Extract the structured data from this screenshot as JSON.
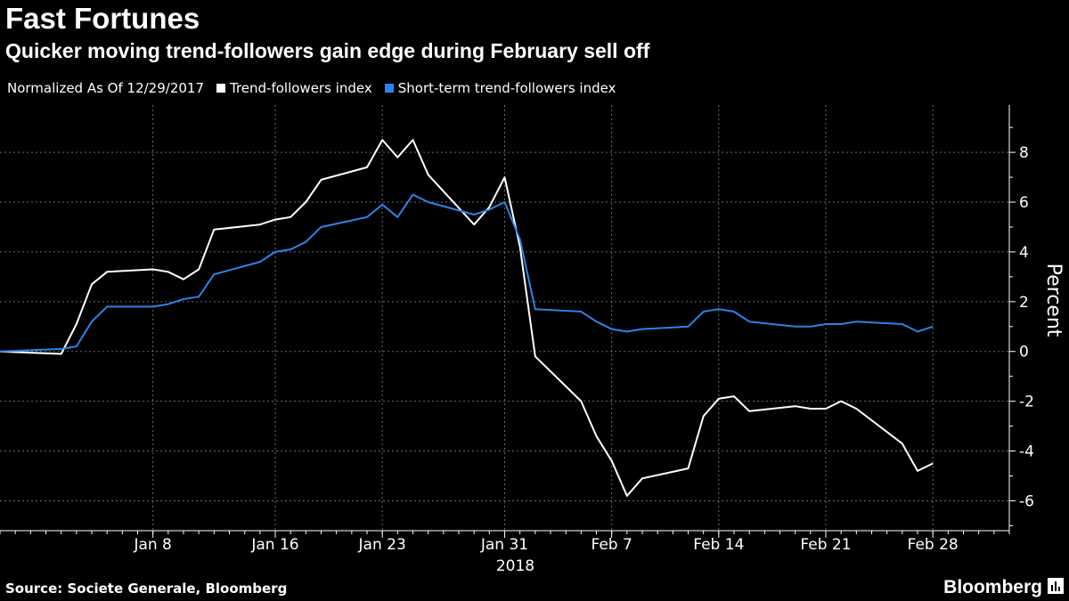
{
  "header": {
    "title": "Fast Fortunes",
    "subtitle": "Quicker moving trend-followers gain edge during February sell off"
  },
  "legend": {
    "note": "Normalized As Of 12/29/2017",
    "items": [
      {
        "label": "Trend-followers index",
        "color": "#ffffff"
      },
      {
        "label": "Short-term trend-followers index",
        "color": "#2d83e6"
      }
    ]
  },
  "footer": {
    "source": "Source: Societe Generale, Bloomberg",
    "brand": "Bloomberg",
    "brand_icon": "bloomberg-chart-icon"
  },
  "chart_data": {
    "type": "line",
    "ylabel": "Percent",
    "ylim": [
      -7.2,
      9.9
    ],
    "yticks": [
      -6,
      -4,
      -2,
      0,
      2,
      4,
      6,
      8
    ],
    "xlim": [
      "2017-12-29",
      "2018-03-05"
    ],
    "xticks": [
      {
        "date": "2018-01-08",
        "label": "Jan 8"
      },
      {
        "date": "2018-01-16",
        "label": "Jan 16"
      },
      {
        "date": "2018-01-23",
        "label": "Jan 23"
      },
      {
        "date": "2018-01-31",
        "label": "Jan 31"
      },
      {
        "date": "2018-02-07",
        "label": "Feb 7"
      },
      {
        "date": "2018-02-14",
        "label": "Feb 14"
      },
      {
        "date": "2018-02-21",
        "label": "Feb 21"
      },
      {
        "date": "2018-02-28",
        "label": "Feb 28"
      }
    ],
    "year_label": {
      "date": "2018-01-31",
      "label": "2018"
    },
    "grid": true,
    "x": [
      "2017-12-29",
      "2018-01-02",
      "2018-01-03",
      "2018-01-04",
      "2018-01-05",
      "2018-01-08",
      "2018-01-09",
      "2018-01-10",
      "2018-01-11",
      "2018-01-12",
      "2018-01-15",
      "2018-01-16",
      "2018-01-17",
      "2018-01-18",
      "2018-01-19",
      "2018-01-22",
      "2018-01-23",
      "2018-01-24",
      "2018-01-25",
      "2018-01-26",
      "2018-01-29",
      "2018-01-30",
      "2018-01-31",
      "2018-02-01",
      "2018-02-02",
      "2018-02-05",
      "2018-02-06",
      "2018-02-07",
      "2018-02-08",
      "2018-02-09",
      "2018-02-12",
      "2018-02-13",
      "2018-02-14",
      "2018-02-15",
      "2018-02-16",
      "2018-02-19",
      "2018-02-20",
      "2018-02-21",
      "2018-02-22",
      "2018-02-23",
      "2018-02-26",
      "2018-02-27",
      "2018-02-28",
      "2018-03-01",
      "2018-03-02"
    ],
    "series": [
      {
        "name": "Trend-followers index",
        "color": "#ffffff",
        "values": [
          0,
          -0.1,
          1.1,
          2.7,
          3.2,
          3.3,
          3.2,
          2.9,
          3.3,
          4.9,
          5.1,
          5.3,
          5.4,
          6.0,
          6.9,
          7.4,
          8.5,
          7.8,
          8.5,
          7.1,
          5.1,
          5.8,
          7.0,
          4.2,
          -0.2,
          -2.0,
          -3.4,
          -4.4,
          -5.8,
          -5.1,
          -4.7,
          -2.6,
          -1.9,
          -1.8,
          -2.4,
          -2.2,
          -2.3,
          -2.3,
          -2.0,
          -2.3,
          -3.7,
          -4.8,
          -4.5,
          null,
          null
        ]
      },
      {
        "name": "Short-term trend-followers index",
        "color": "#2d83e6",
        "values": [
          0,
          0.1,
          0.2,
          1.2,
          1.8,
          1.8,
          1.9,
          2.1,
          2.2,
          3.1,
          3.6,
          4.0,
          4.1,
          4.4,
          5.0,
          5.4,
          5.9,
          5.4,
          6.3,
          6.0,
          5.5,
          5.7,
          6.0,
          4.5,
          1.7,
          1.6,
          1.2,
          0.9,
          0.8,
          0.9,
          1.0,
          1.6,
          1.7,
          1.6,
          1.2,
          1.0,
          1.0,
          1.1,
          1.1,
          1.2,
          1.1,
          0.8,
          1.0,
          null,
          null
        ]
      }
    ]
  }
}
